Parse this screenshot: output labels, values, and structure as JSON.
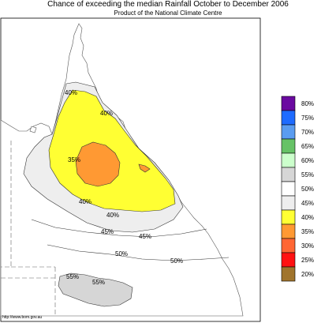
{
  "title": "Chance of exceeding the median Rainfall October to December 2006",
  "subtitle": "Product of the National Climate Centre",
  "footer_url": "http://www.bom.gov.au",
  "map_labels": {
    "l40_top": "40%",
    "l40_right": "40%",
    "l35_center": "35%",
    "l40_lowleft": "40%",
    "l40_bottom": "40%",
    "l45_left": "45%",
    "l45_right": "45%",
    "l50_left": "50%",
    "l50_right": "50%",
    "l55_left": "55%",
    "l55_right": "55%"
  },
  "legend": [
    {
      "label": "80%",
      "color": "#6a0aa0"
    },
    {
      "label": "75%",
      "color": "#1e6bff"
    },
    {
      "label": "70%",
      "color": "#5a9cf0"
    },
    {
      "label": "65%",
      "color": "#66c266"
    },
    {
      "label": "60%",
      "color": "#ccffcc"
    },
    {
      "label": "55%",
      "color": "#d6d6d6"
    },
    {
      "label": "50%",
      "color": "#ffffff"
    },
    {
      "label": "45%",
      "color": "#eeeeee"
    },
    {
      "label": "40%",
      "color": "#ffff33"
    },
    {
      "label": "35%",
      "color": "#ff9933"
    },
    {
      "label": "30%",
      "color": "#ff6633"
    },
    {
      "label": "25%",
      "color": "#ff1111"
    },
    {
      "label": "20%",
      "color": "#a0742c"
    }
  ]
}
